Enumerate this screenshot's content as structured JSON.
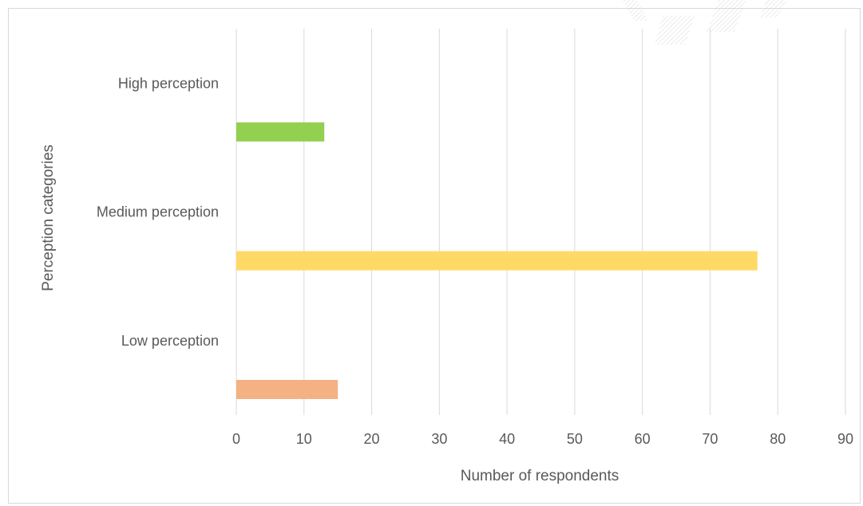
{
  "chart_data": {
    "type": "bar",
    "orientation": "horizontal",
    "categories": [
      "Low perception",
      "Medium perception",
      "High perception"
    ],
    "values": [
      15,
      77,
      13
    ],
    "colors": [
      "#F4B183",
      "#FFD966",
      "#92D050"
    ],
    "xlabel": "Number of respondents",
    "ylabel": "Perception categories",
    "xlim": [
      0,
      90
    ],
    "xticks": [
      0,
      10,
      20,
      30,
      40,
      50,
      60,
      70,
      80,
      90
    ],
    "grid": "vertical",
    "legend": "none"
  }
}
